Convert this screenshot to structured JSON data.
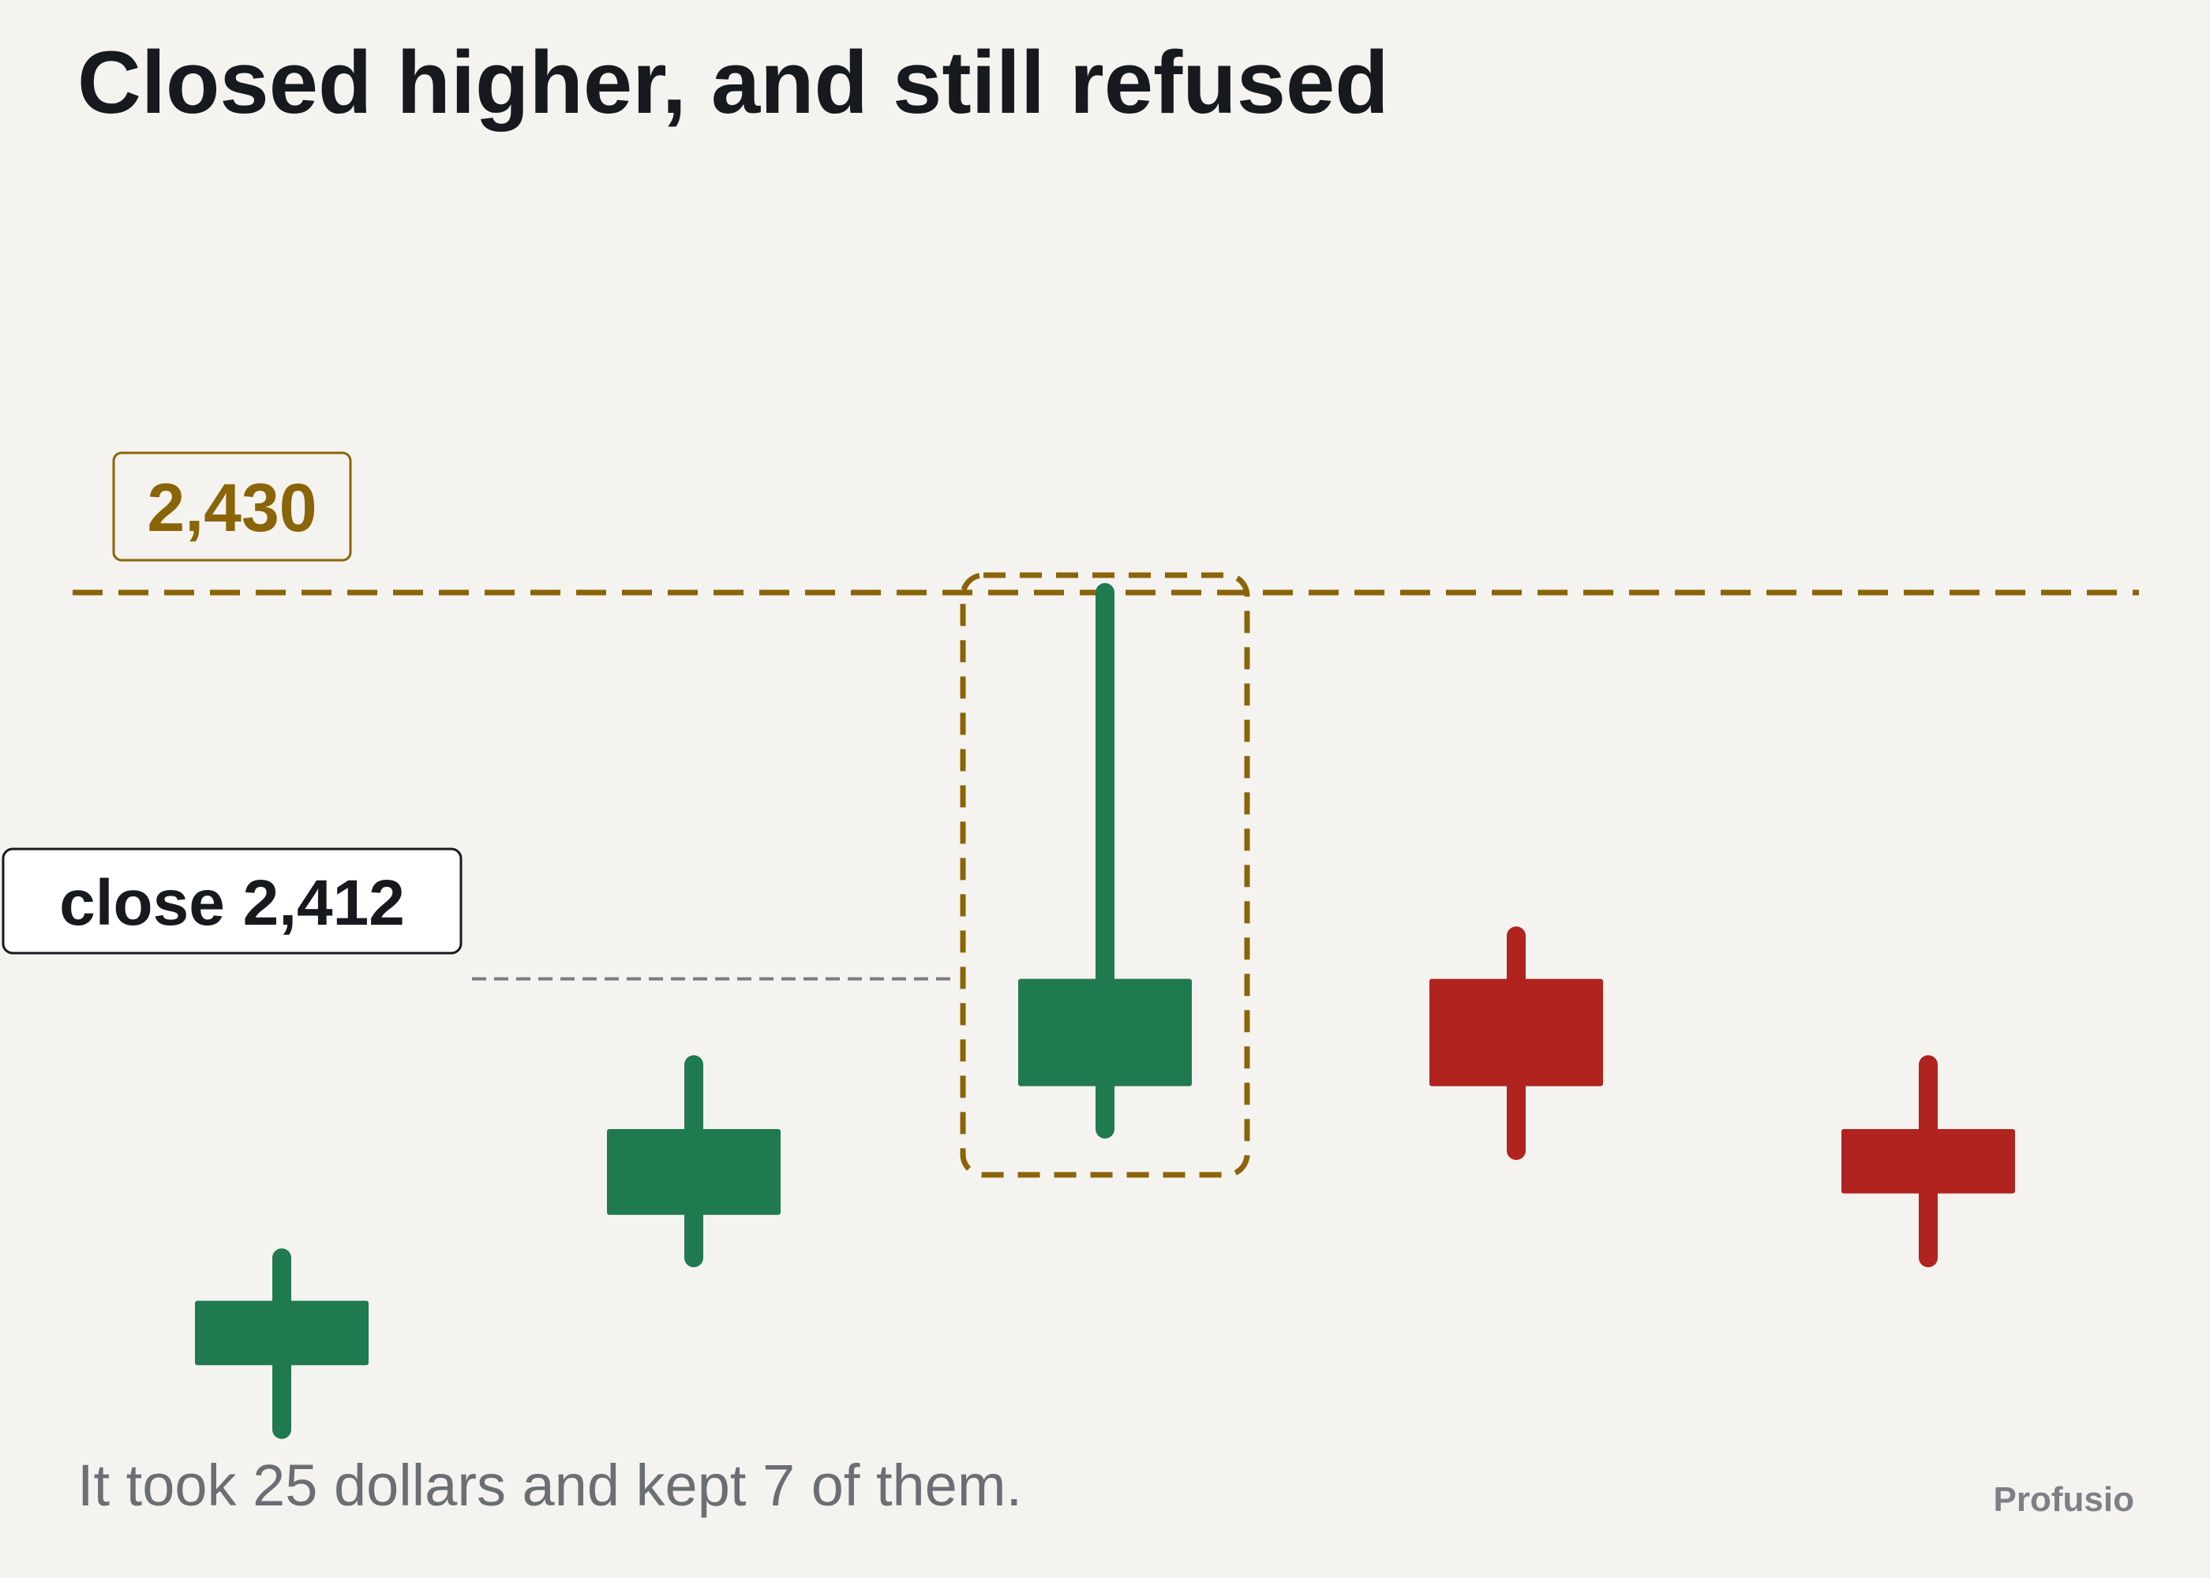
{
  "title": "Closed higher, and still refused",
  "caption": "It took 25 dollars and kept 7 of them.",
  "brand": "Profusio",
  "colors": {
    "up": "#1f7a4f",
    "down": "#b0231f",
    "resistance": "#8a6408",
    "background": "#f5f3ef",
    "text": "#16191e",
    "muted": "#6b6e74"
  },
  "annotations": {
    "resistance_label": "2,430",
    "close_label": "close 2,412"
  },
  "chart_data": {
    "type": "candlestick",
    "resistance": 2430,
    "highlighted_index": 2,
    "candles": [
      {
        "open": 2394,
        "close": 2397,
        "high": 2399,
        "low": 2391
      },
      {
        "open": 2401,
        "close": 2405,
        "high": 2408,
        "low": 2399
      },
      {
        "open": 2407,
        "close": 2412,
        "high": 2430,
        "low": 2405
      },
      {
        "open": 2412,
        "close": 2407,
        "high": 2414,
        "low": 2404
      },
      {
        "open": 2405,
        "close": 2402,
        "high": 2408,
        "low": 2399
      }
    ]
  }
}
